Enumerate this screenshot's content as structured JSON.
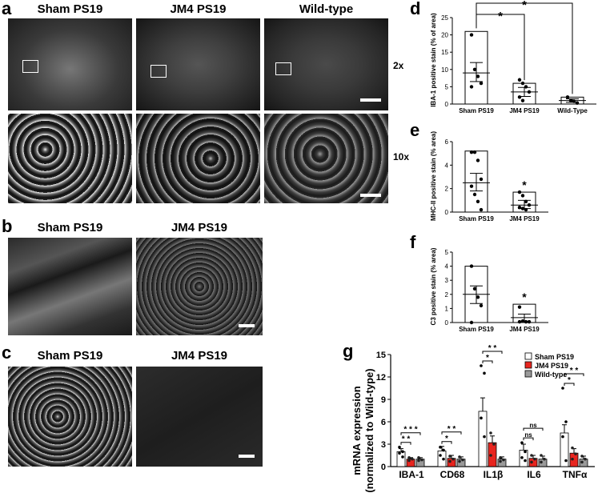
{
  "panels": {
    "a": "a",
    "b": "b",
    "c": "c",
    "d": "d",
    "e": "e",
    "f": "f",
    "g": "g"
  },
  "panel_a": {
    "columns": [
      "Sham PS19",
      "JM4 PS19",
      "Wild-type"
    ],
    "mag_top": "2x",
    "mag_bottom": "10x"
  },
  "panel_b": {
    "columns": [
      "Sham PS19",
      "JM4 PS19"
    ]
  },
  "panel_c": {
    "columns": [
      "Sham PS19",
      "JM4 PS19"
    ]
  },
  "chart_data": [
    {
      "id": "d",
      "type": "scatter",
      "ylabel": "IBA-1 positive stain (% of area)",
      "ylim": [
        0,
        25
      ],
      "yticks": [
        "0",
        "5",
        "10",
        "15",
        "20",
        "25"
      ],
      "categories": [
        "Sham PS19",
        "JM4 PS19",
        "Wild-Type"
      ],
      "box_top": [
        21,
        6,
        2
      ],
      "mean": [
        9,
        3.5,
        1
      ],
      "err_hi": [
        12,
        4.8,
        1.5
      ],
      "err_lo": [
        6.5,
        2.2,
        0.5
      ],
      "points": [
        [
          20,
          10,
          8,
          6,
          5
        ],
        [
          7,
          6,
          5,
          3.5,
          2,
          1
        ],
        [
          2,
          1,
          0.8,
          0.3
        ]
      ],
      "significance": [
        {
          "from": 0,
          "to": 1,
          "label": "*"
        },
        {
          "from": 0,
          "to": 2,
          "label": "*"
        }
      ]
    },
    {
      "id": "e",
      "type": "scatter",
      "ylabel": "MHC-II positive stain (% area)",
      "ylim": [
        0,
        6
      ],
      "yticks": [
        "0",
        "2",
        "4",
        "6"
      ],
      "categories": [
        "Sham PS19",
        "JM4 PS19"
      ],
      "box_top": [
        5.2,
        1.7
      ],
      "mean": [
        2.5,
        0.6
      ],
      "err_hi": [
        3.3,
        1.0
      ],
      "err_lo": [
        1.8,
        0.3
      ],
      "points": [
        [
          5.1,
          5.1,
          4.4,
          2.8,
          2.2,
          1.5,
          0.9,
          0.2
        ],
        [
          1.7,
          1.4,
          0.9,
          0.6,
          0.4,
          0.3,
          0.2
        ]
      ],
      "star": "*"
    },
    {
      "id": "f",
      "type": "scatter",
      "ylabel": "C3 positive stain (% area)",
      "ylim": [
        0,
        5
      ],
      "yticks": [
        "0",
        "1",
        "2",
        "3",
        "4",
        "5"
      ],
      "categories": [
        "Sham PS19",
        "JM4 PS19"
      ],
      "box_top": [
        4,
        1.3
      ],
      "mean": [
        2,
        0.35
      ],
      "err_hi": [
        2.6,
        0.6
      ],
      "err_lo": [
        1.35,
        0.1
      ],
      "points": [
        [
          4,
          2.4,
          1.8,
          1.2,
          0
        ],
        [
          1.1,
          0.1,
          0.05,
          0.05,
          0.05
        ]
      ],
      "star": "*"
    },
    {
      "id": "g",
      "type": "bar",
      "ylabel": "mRNA expression",
      "ylabel2": "(normalized to Wild-type)",
      "ylim": [
        0,
        15
      ],
      "yticks": [
        "0",
        "3",
        "6",
        "9",
        "12",
        "15"
      ],
      "categories": [
        "IBA-1",
        "CD68",
        "IL1β",
        "IL6",
        "TNFα"
      ],
      "series": [
        {
          "name": "Sham PS19",
          "color": "#ffffff",
          "values": [
            2.0,
            2.1,
            7.4,
            2.2,
            4.5
          ],
          "err": [
            0.4,
            0.6,
            1.8,
            0.8,
            1.1
          ],
          "points": [
            [
              2.6,
              2.0,
              1.8,
              1.3
            ],
            [
              2.6,
              2.2,
              1.5,
              1.0
            ],
            [
              13.5,
              12.5,
              6.5,
              4.0
            ],
            [
              3.2,
              2.0,
              1.2,
              0.8
            ],
            [
              10.5,
              6.0,
              4.0,
              0.8
            ]
          ]
        },
        {
          "name": "JM4 PS19",
          "color": "#e8251f",
          "values": [
            1.0,
            1.1,
            3.2,
            1.1,
            1.8
          ],
          "err": [
            0.2,
            0.4,
            0.9,
            0.4,
            0.6
          ],
          "points": [
            [
              1.2,
              1.0,
              0.8
            ],
            [
              1.4,
              1.0,
              0.7
            ],
            [
              4.5,
              3.0,
              1.5
            ],
            [
              1.5,
              1.0,
              0.6
            ],
            [
              2.5,
              1.7,
              1.0
            ]
          ]
        },
        {
          "name": "Wild-type",
          "color": "#9a9a9a",
          "values": [
            1.0,
            1.0,
            1.0,
            1.0,
            1.0
          ],
          "err": [
            0.2,
            0.3,
            0.3,
            0.4,
            0.4
          ],
          "points": [
            [
              1.2,
              0.9,
              0.8
            ],
            [
              1.3,
              0.9,
              0.7
            ],
            [
              1.2,
              0.9,
              0.7
            ],
            [
              1.5,
              1.0,
              0.6
            ],
            [
              1.4,
              1.0,
              0.6
            ]
          ]
        }
      ],
      "significance": [
        {
          "cat": 0,
          "pairs": [
            {
              "s": 0,
              "e": 1,
              "label": "* *"
            },
            {
              "s": 0,
              "e": 2,
              "label": "* * *"
            }
          ]
        },
        {
          "cat": 1,
          "pairs": [
            {
              "s": 0,
              "e": 1,
              "label": "*"
            },
            {
              "s": 0,
              "e": 2,
              "label": "* *"
            }
          ]
        },
        {
          "cat": 2,
          "pairs": [
            {
              "s": 0,
              "e": 1,
              "label": "*"
            },
            {
              "s": 0,
              "e": 2,
              "label": "* *"
            }
          ]
        },
        {
          "cat": 3,
          "pairs": [
            {
              "s": 0,
              "e": 1,
              "label": "ns"
            },
            {
              "s": 0,
              "e": 2,
              "label": "ns"
            }
          ]
        },
        {
          "cat": 4,
          "pairs": [
            {
              "s": 0,
              "e": 1,
              "label": "*"
            },
            {
              "s": 0,
              "e": 2,
              "label": "* *"
            }
          ]
        }
      ]
    }
  ]
}
